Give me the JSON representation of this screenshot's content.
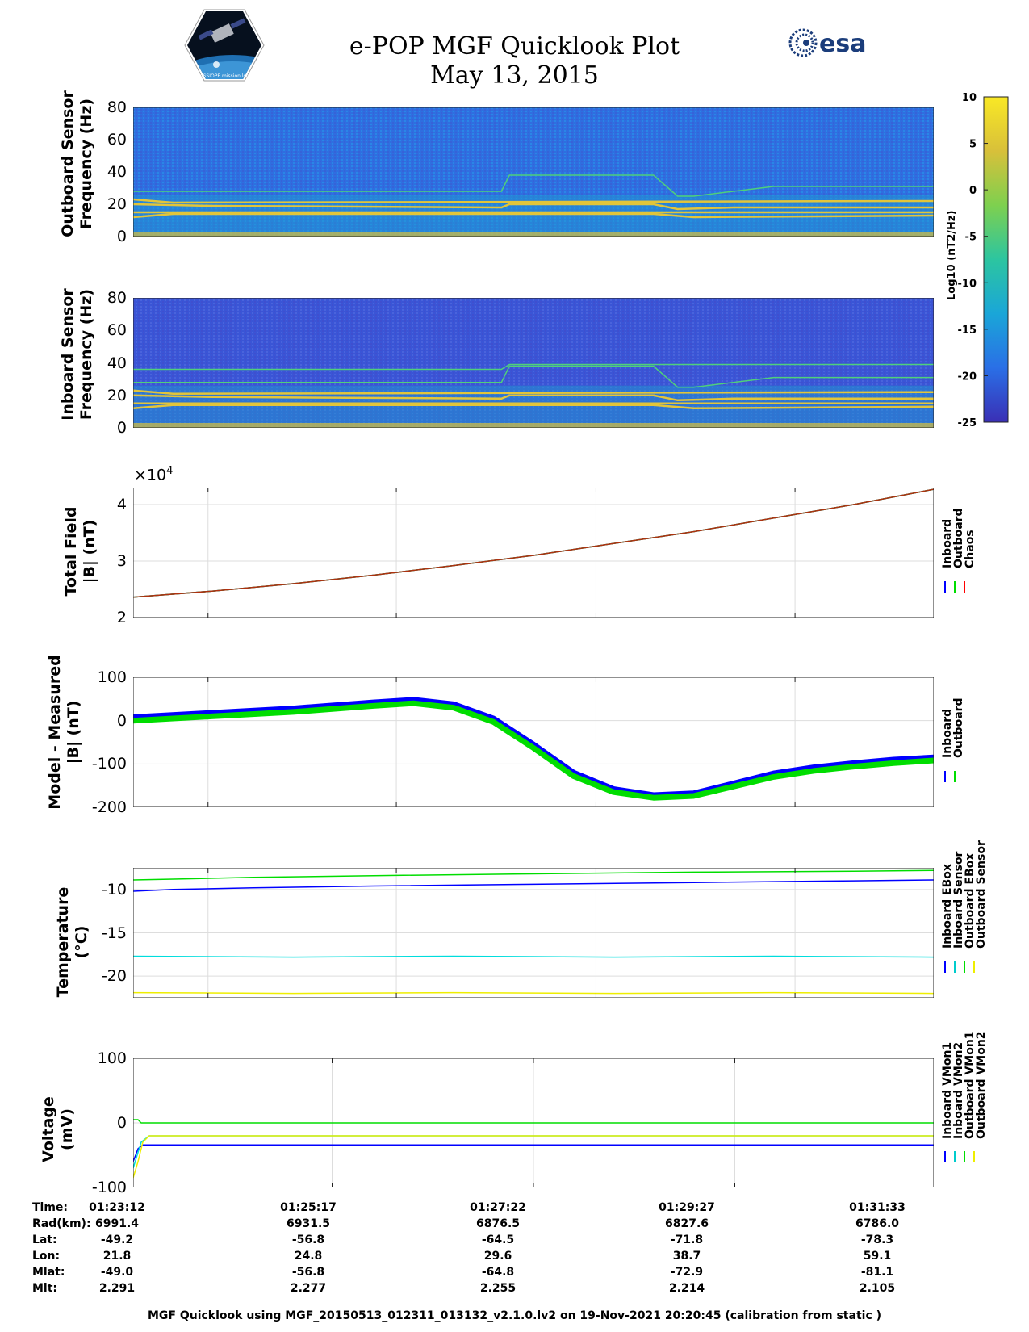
{
  "header": {
    "title_line1": "e-POP MGF Quicklook Plot",
    "title_line2": "May 13, 2015",
    "logo_left": "CASSIOPE mission logo",
    "logo_right": "esa"
  },
  "colorbar": {
    "label": "Log10 (nT2/Hz)",
    "ticks": [
      "10",
      "5",
      "0",
      "-5",
      "-10",
      "-15",
      "-20",
      "-25"
    ],
    "range": [
      -25,
      10
    ],
    "colors": [
      "#3a2fb5",
      "#2a6fe6",
      "#1aa6d8",
      "#2cc5a0",
      "#7ed04f",
      "#d8c03a",
      "#f9e825"
    ]
  },
  "chart_data": [
    {
      "type": "heatmap",
      "name": "outboard-spectrogram",
      "ylabel_line1": "Outboard Sensor",
      "ylabel_line2": "Frequency (Hz)",
      "ylim": [
        0,
        80
      ],
      "yticks": [
        "80",
        "60",
        "40",
        "20",
        "0"
      ],
      "lines_hz": [
        {
          "x": [
            0,
            0.46,
            0.47,
            0.65,
            0.68,
            0.7,
            0.8,
            1
          ],
          "y": [
            28,
            28,
            38,
            38,
            25,
            25,
            31,
            31
          ]
        },
        {
          "x": [
            0,
            0.1,
            0.46,
            0.47,
            0.65,
            0.68,
            0.75,
            1
          ],
          "y": [
            20,
            19,
            18,
            20,
            20,
            17,
            18,
            18
          ]
        },
        {
          "x": [
            0,
            1
          ],
          "y": [
            15,
            15
          ]
        },
        {
          "x": [
            0,
            0.05,
            0.46,
            0.65,
            0.7,
            1
          ],
          "y": [
            12,
            14,
            14,
            14,
            12,
            13
          ]
        },
        {
          "x": [
            0,
            0.05,
            1
          ],
          "y": [
            23,
            21,
            22
          ]
        }
      ]
    },
    {
      "type": "heatmap",
      "name": "inboard-spectrogram",
      "ylabel_line1": "Inboard Sensor",
      "ylabel_line2": "Frequency (Hz)",
      "ylim": [
        0,
        80
      ],
      "yticks": [
        "80",
        "60",
        "40",
        "20",
        "0"
      ],
      "lines_hz": [
        {
          "x": [
            0,
            0.46,
            0.47,
            0.65,
            0.68,
            0.7,
            0.8,
            1
          ],
          "y": [
            28,
            28,
            38,
            38,
            25,
            25,
            31,
            31
          ]
        },
        {
          "x": [
            0,
            0.1,
            0.46,
            0.47,
            0.65,
            0.68,
            0.75,
            1
          ],
          "y": [
            20,
            19,
            18,
            20,
            20,
            17,
            18,
            18
          ]
        },
        {
          "x": [
            0,
            1
          ],
          "y": [
            15,
            15
          ]
        },
        {
          "x": [
            0,
            0.05,
            0.46,
            0.65,
            0.7,
            1
          ],
          "y": [
            12,
            14,
            14,
            14,
            12,
            13
          ]
        },
        {
          "x": [
            0,
            0.05,
            1
          ],
          "y": [
            23,
            21,
            22
          ]
        },
        {
          "x": [
            0,
            0.46,
            0.47,
            0.65,
            1
          ],
          "y": [
            36,
            36,
            39,
            39,
            39
          ]
        }
      ]
    },
    {
      "type": "line",
      "name": "total-field",
      "ylabel_line1": "Total Field",
      "ylabel_line2": "|B| (nT)",
      "multiplier": "×10",
      "multiplier_exp": "4",
      "ylim": [
        2,
        4.3
      ],
      "yticks": [
        {
          "v": 4,
          "t": "4"
        },
        {
          "v": 3,
          "t": "3"
        },
        {
          "v": 2,
          "t": "2"
        }
      ],
      "legend": [
        "Inboard",
        "Outboard",
        "Chaos"
      ],
      "legend_colors": [
        "#0000ff",
        "#00dd00",
        "#ff0000"
      ],
      "series": [
        {
          "name": "Inboard",
          "color": "#0000ff",
          "x": [
            0,
            0.1,
            0.2,
            0.3,
            0.4,
            0.5,
            0.6,
            0.7,
            0.8,
            0.9,
            1
          ],
          "y": [
            2.36,
            2.47,
            2.6,
            2.75,
            2.92,
            3.1,
            3.31,
            3.52,
            3.76,
            4.0,
            4.27
          ]
        },
        {
          "name": "Outboard",
          "color": "#00dd00",
          "x": [
            0,
            0.1,
            0.2,
            0.3,
            0.4,
            0.5,
            0.6,
            0.7,
            0.8,
            0.9,
            1
          ],
          "y": [
            2.36,
            2.47,
            2.6,
            2.75,
            2.92,
            3.1,
            3.31,
            3.52,
            3.76,
            4.0,
            4.27
          ]
        },
        {
          "name": "Chaos",
          "color": "#b03010",
          "x": [
            0,
            0.1,
            0.2,
            0.3,
            0.4,
            0.5,
            0.6,
            0.7,
            0.8,
            0.9,
            1
          ],
          "y": [
            2.36,
            2.47,
            2.6,
            2.75,
            2.92,
            3.1,
            3.31,
            3.52,
            3.76,
            4.0,
            4.27
          ]
        }
      ]
    },
    {
      "type": "line",
      "name": "model-minus-measured",
      "ylabel_line1": "Model - Measured",
      "ylabel_line2": "|B| (nT)",
      "ylim": [
        -200,
        100
      ],
      "yticks": [
        {
          "v": 100,
          "t": "100"
        },
        {
          "v": 0,
          "t": "0"
        },
        {
          "v": -100,
          "t": "-100"
        },
        {
          "v": -200,
          "t": "-200"
        }
      ],
      "legend": [
        "Inboard",
        "Outboard"
      ],
      "legend_colors": [
        "#0000ff",
        "#00dd00"
      ],
      "series": [
        {
          "name": "Inboard",
          "color": "#0000ff",
          "x": [
            0,
            0.1,
            0.2,
            0.3,
            0.35,
            0.4,
            0.45,
            0.5,
            0.55,
            0.6,
            0.65,
            0.7,
            0.75,
            0.8,
            0.85,
            0.9,
            0.95,
            1
          ],
          "y": [
            8,
            18,
            28,
            42,
            48,
            38,
            5,
            -55,
            -120,
            -158,
            -172,
            -168,
            -145,
            -122,
            -108,
            -98,
            -90,
            -85
          ]
        },
        {
          "name": "Outboard",
          "color": "#00dd00",
          "x": [
            0,
            0.1,
            0.2,
            0.3,
            0.35,
            0.4,
            0.45,
            0.5,
            0.55,
            0.6,
            0.65,
            0.7,
            0.75,
            0.8,
            0.85,
            0.9,
            0.95,
            1
          ],
          "y": [
            0,
            10,
            20,
            34,
            40,
            30,
            -3,
            -63,
            -128,
            -165,
            -178,
            -174,
            -152,
            -130,
            -116,
            -106,
            -98,
            -92
          ]
        }
      ]
    },
    {
      "type": "line",
      "name": "temperature",
      "ylabel_line1": "Temperature",
      "ylabel_line2": "(°C)",
      "ylim": [
        -22.5,
        -7.5
      ],
      "yticks": [
        {
          "v": -10,
          "t": "-10"
        },
        {
          "v": -15,
          "t": "-15"
        },
        {
          "v": -20,
          "t": "-20"
        }
      ],
      "legend": [
        "Inboard EBox",
        "Inboard Sensor",
        "Outboard EBox",
        "Outboard Sensor"
      ],
      "legend_colors": [
        "#0000ff",
        "#00cccc",
        "#00dd00",
        "#eeee00"
      ],
      "series": [
        {
          "name": "Inboard EBox",
          "color": "#0000ff",
          "x": [
            0,
            0.05,
            0.15,
            0.3,
            0.5,
            0.7,
            0.9,
            1
          ],
          "y": [
            -10.2,
            -10.0,
            -9.8,
            -9.6,
            -9.4,
            -9.2,
            -9.0,
            -8.9
          ]
        },
        {
          "name": "Inboard Sensor",
          "color": "#00dddd",
          "x": [
            0,
            0.2,
            0.4,
            0.6,
            0.8,
            1
          ],
          "y": [
            -17.7,
            -17.8,
            -17.7,
            -17.8,
            -17.7,
            -17.8
          ]
        },
        {
          "name": "Outboard EBox",
          "color": "#00dd00",
          "x": [
            0,
            0.05,
            0.15,
            0.3,
            0.5,
            0.7,
            0.9,
            1
          ],
          "y": [
            -8.9,
            -8.8,
            -8.6,
            -8.4,
            -8.2,
            -8.0,
            -7.9,
            -7.8
          ]
        },
        {
          "name": "Outboard Sensor",
          "color": "#eeee00",
          "x": [
            0,
            0.2,
            0.4,
            0.6,
            0.8,
            1
          ],
          "y": [
            -21.9,
            -22.0,
            -21.9,
            -22.0,
            -21.9,
            -22.0
          ]
        }
      ]
    },
    {
      "type": "line",
      "name": "voltage",
      "ylabel_line1": "Voltage",
      "ylabel_line2": "(mV)",
      "ylim": [
        -100,
        100
      ],
      "yticks": [
        {
          "v": 100,
          "t": "100"
        },
        {
          "v": 0,
          "t": "0"
        },
        {
          "v": -100,
          "t": "-100"
        }
      ],
      "legend": [
        "Inboard VMon1",
        "Inboard VMon2",
        "Outboard VMon1",
        "Outboard VMon2"
      ],
      "legend_colors": [
        "#0000ff",
        "#00cccc",
        "#00dd00",
        "#eeee00"
      ],
      "series": [
        {
          "name": "Inboard VMon1",
          "color": "#0000ff",
          "x": [
            0,
            0.006,
            0.012,
            0.02,
            1
          ],
          "y": [
            -60,
            -40,
            -34,
            -34,
            -34
          ]
        },
        {
          "name": "Inboard VMon2",
          "color": "#00dddd",
          "x": [
            0,
            0.01,
            0.02,
            1
          ],
          "y": [
            -70,
            -30,
            -20,
            -20
          ]
        },
        {
          "name": "Outboard VMon1",
          "color": "#00dd00",
          "x": [
            0,
            0.006,
            0.01,
            0.02,
            1
          ],
          "y": [
            5,
            5,
            0,
            0,
            0
          ]
        },
        {
          "name": "Outboard VMon2",
          "color": "#eeee00",
          "x": [
            0,
            0.006,
            0.012,
            0.02,
            1
          ],
          "y": [
            -85,
            -60,
            -30,
            -20,
            -20
          ]
        }
      ]
    }
  ],
  "time_axis": {
    "row_labels": [
      "Time:",
      "Rad(km):",
      "Lat:",
      "Lon:",
      "Mlat:",
      "Mlt:"
    ],
    "columns": [
      {
        "time": "01:23:12",
        "rad": "6991.4",
        "lat": "-49.2",
        "lon": "21.8",
        "mlat": "-49.0",
        "mlt": "2.291"
      },
      {
        "time": "01:25:17",
        "rad": "6931.5",
        "lat": "-56.8",
        "lon": "24.8",
        "mlat": "-56.8",
        "mlt": "2.277"
      },
      {
        "time": "01:27:22",
        "rad": "6876.5",
        "lat": "-64.5",
        "lon": "29.6",
        "mlat": "-64.8",
        "mlt": "2.255"
      },
      {
        "time": "01:29:27",
        "rad": "6827.6",
        "lat": "-71.8",
        "lon": "38.7",
        "mlat": "-72.9",
        "mlt": "2.214"
      },
      {
        "time": "01:31:33",
        "rad": "6786.0",
        "lat": "-78.3",
        "lon": "59.1",
        "mlat": "-81.1",
        "mlt": "2.105"
      }
    ]
  },
  "footer": "MGF Quicklook using MGF_20150513_012311_013132_v2.1.0.lv2 on 19-Nov-2021 20:20:45 (calibration from static )"
}
